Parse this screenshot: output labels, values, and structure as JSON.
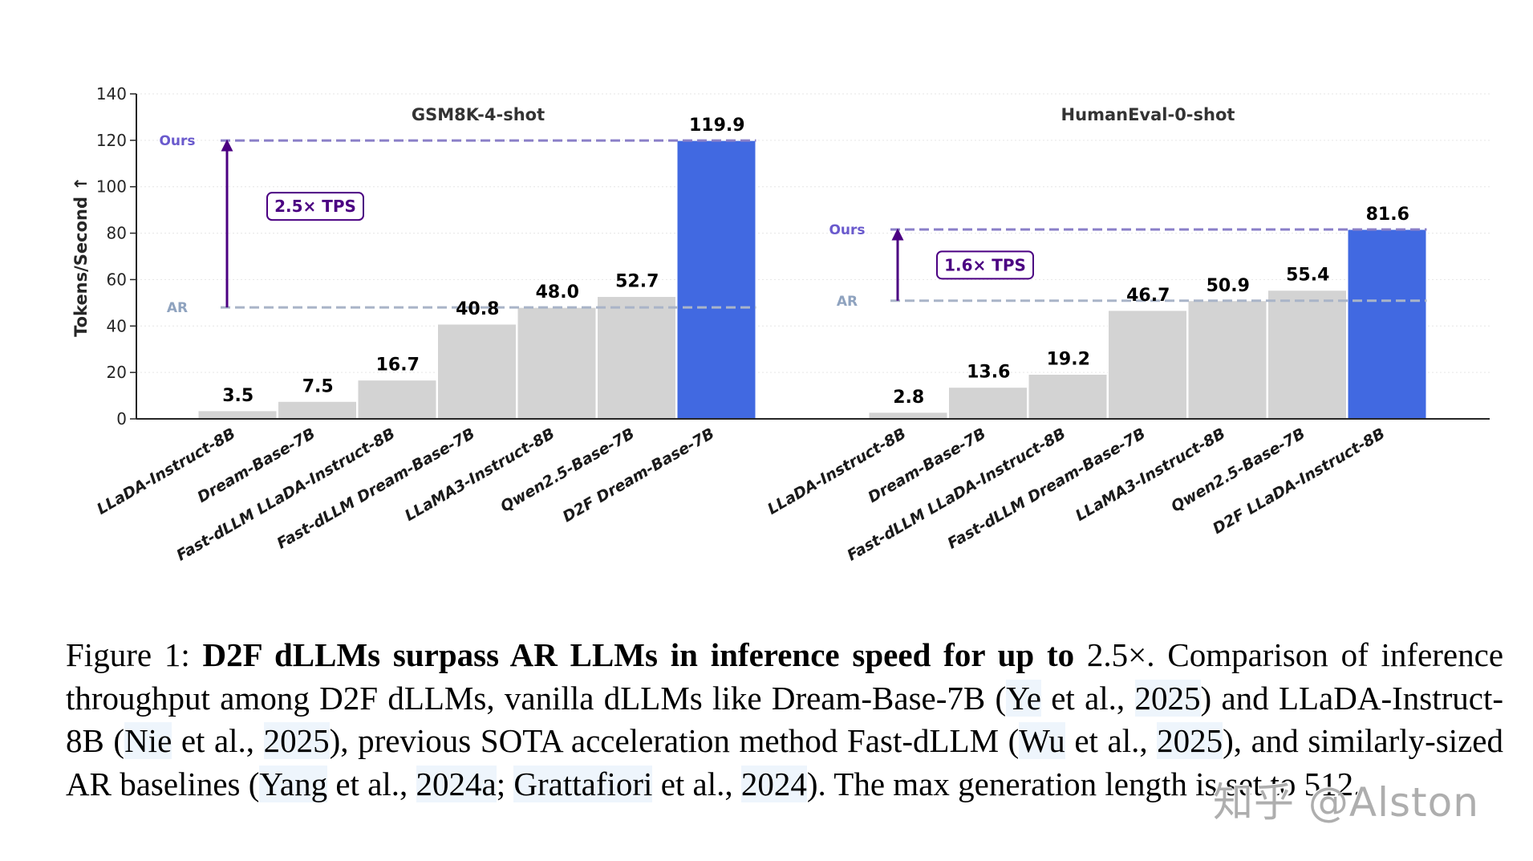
{
  "chart_data": {
    "type": "bar",
    "ylabel": "Tokens/Second ↑",
    "ylim": [
      0,
      140
    ],
    "yticks": [
      0,
      20,
      40,
      60,
      80,
      100,
      120,
      140
    ],
    "grid": true,
    "colors": {
      "baseline": "#d3d3d3",
      "ours": "#4169e1",
      "ours_line": "#8a7fc8",
      "ar_line": "#a9b4c8",
      "ours_label": "#6a5acd",
      "ar_label": "#8fa3bf",
      "arrow": "#4b0082"
    },
    "panels": [
      {
        "title": "GSM8K-4-shot",
        "categories": [
          "LLaDA-Instruct-8B",
          "Dream-Base-7B",
          "Fast-dLLM LLaDA-Instruct-8B",
          "Fast-dLLM Dream-Base-7B",
          "LLaMA3-Instruct-8B",
          "Qwen2.5-Base-7B",
          "D2F Dream-Base-7B"
        ],
        "values": [
          3.5,
          7.5,
          16.7,
          40.8,
          48.0,
          52.7,
          119.9
        ],
        "value_labels": [
          "3.5",
          "7.5",
          "16.7",
          "40.8",
          "48.0",
          "52.7",
          "119.9"
        ],
        "highlight_index": 6,
        "ours_line": 119.9,
        "ar_line": 48.0,
        "ours_label": "Ours",
        "ar_label": "AR",
        "speedup_label": "2.5× TPS"
      },
      {
        "title": "HumanEval-0-shot",
        "categories": [
          "LLaDA-Instruct-8B",
          "Dream-Base-7B",
          "Fast-dLLM LLaDA-Instruct-8B",
          "Fast-dLLM Dream-Base-7B",
          "LLaMA3-Instruct-8B",
          "Qwen2.5-Base-7B",
          "D2F LLaDA-Instruct-8B"
        ],
        "values": [
          2.8,
          13.6,
          19.2,
          46.7,
          50.9,
          55.4,
          81.6
        ],
        "value_labels": [
          "2.8",
          "13.6",
          "19.2",
          "46.7",
          "50.9",
          "55.4",
          "81.6"
        ],
        "highlight_index": 6,
        "ours_line": 81.6,
        "ar_line": 50.9,
        "ours_label": "Ours",
        "ar_label": "AR",
        "speedup_label": "1.6× TPS"
      }
    ]
  },
  "caption": {
    "prefix": "Figure 1: ",
    "bold": "D2F dLLMs surpass AR LLMs in inference speed for up to",
    "bold_value": " 2.5×.",
    "segments": [
      {
        "t": " Comparison of inference throughput among D2F dLLMs, vanilla dLLMs like Dream-Base-7B (",
        "cite": false
      },
      {
        "t": "Ye",
        "cite": true
      },
      {
        "t": " et al., ",
        "cite": false
      },
      {
        "t": "2025",
        "cite": true
      },
      {
        "t": ") and LLaDA-Instruct-8B (",
        "cite": false
      },
      {
        "t": "Nie",
        "cite": true
      },
      {
        "t": " et al., ",
        "cite": false
      },
      {
        "t": "2025",
        "cite": true
      },
      {
        "t": "), previous SOTA acceleration method Fast-dLLM (",
        "cite": false
      },
      {
        "t": "Wu",
        "cite": true
      },
      {
        "t": " et al., ",
        "cite": false
      },
      {
        "t": "2025",
        "cite": true
      },
      {
        "t": "), and similarly-sized AR baselines (",
        "cite": false
      },
      {
        "t": "Yang",
        "cite": true
      },
      {
        "t": " et al., ",
        "cite": false
      },
      {
        "t": "2024a",
        "cite": true
      },
      {
        "t": "; ",
        "cite": false
      },
      {
        "t": "Grattafiori",
        "cite": true
      },
      {
        "t": " et al., ",
        "cite": false
      },
      {
        "t": "2024",
        "cite": true
      },
      {
        "t": "). The max generation length is set to 512.",
        "cite": false
      }
    ]
  },
  "watermark": "知乎 @Alston"
}
